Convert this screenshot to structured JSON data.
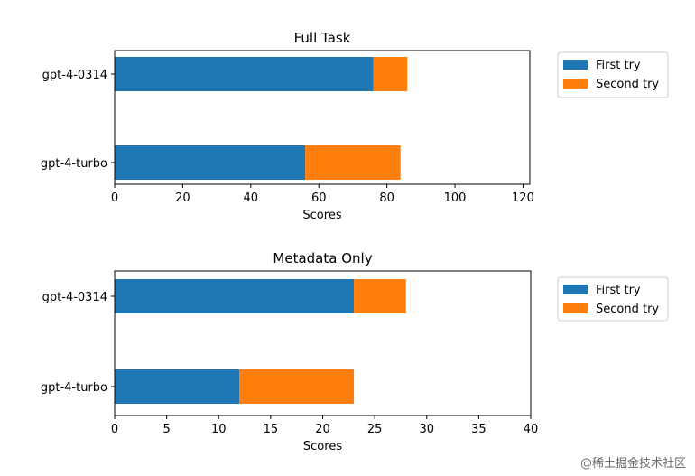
{
  "chart_data": [
    {
      "type": "bar",
      "orientation": "horizontal",
      "stacked": true,
      "title": "Full Task",
      "xlabel": "Scores",
      "ylabel": "",
      "categories": [
        "gpt-4-0314",
        "gpt-4-turbo"
      ],
      "xlim": [
        0,
        122
      ],
      "xticks": [
        0,
        20,
        40,
        60,
        80,
        100,
        120
      ],
      "grid": false,
      "legend_position": "outside-right-top",
      "series": [
        {
          "name": "First try",
          "values": [
            76,
            56
          ],
          "color": "#1f77b4"
        },
        {
          "name": "Second try",
          "values": [
            10,
            28
          ],
          "color": "#ff7f0e"
        }
      ]
    },
    {
      "type": "bar",
      "orientation": "horizontal",
      "stacked": true,
      "title": "Metadata Only",
      "xlabel": "Scores",
      "ylabel": "",
      "categories": [
        "gpt-4-0314",
        "gpt-4-turbo"
      ],
      "xlim": [
        0,
        40
      ],
      "xticks": [
        0,
        5,
        10,
        15,
        20,
        25,
        30,
        35,
        40
      ],
      "grid": false,
      "legend_position": "outside-right-top",
      "series": [
        {
          "name": "First try",
          "values": [
            23,
            12
          ],
          "color": "#1f77b4"
        },
        {
          "name": "Second try",
          "values": [
            5,
            11
          ],
          "color": "#ff7f0e"
        }
      ]
    }
  ],
  "watermark": "@稀土掘金技术社区"
}
